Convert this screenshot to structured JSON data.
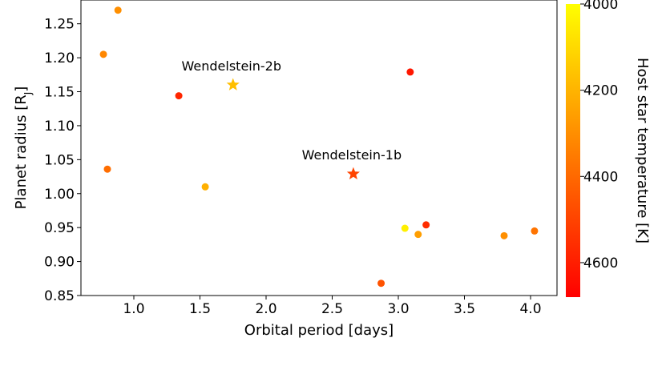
{
  "chart_data": {
    "type": "scatter",
    "title": "",
    "xlabel": "Orbital period [days]",
    "ylabel": "Planet radius [R",
    "ylabel_sub": "J",
    "ylabel_end": "]",
    "colorbar_label": "Host star temperature [K]",
    "xlim": [
      0.6,
      4.2
    ],
    "ylim": [
      0.85,
      1.285
    ],
    "clim": [
      4000,
      4680
    ],
    "x_ticks": [
      1.0,
      1.5,
      2.0,
      2.5,
      3.0,
      3.5,
      4.0
    ],
    "x_tick_labels": [
      "1.0",
      "1.5",
      "2.0",
      "2.5",
      "3.0",
      "3.5",
      "4.0"
    ],
    "y_ticks": [
      0.85,
      0.9,
      0.95,
      1.0,
      1.05,
      1.1,
      1.15,
      1.2,
      1.25
    ],
    "y_tick_labels": [
      "0.85",
      "0.90",
      "0.95",
      "1.00",
      "1.05",
      "1.10",
      "1.15",
      "1.20",
      "1.25"
    ],
    "c_ticks": [
      4000,
      4200,
      4400,
      4600
    ],
    "c_tick_labels": [
      "4000",
      "4200",
      "4400",
      "4600"
    ],
    "colormap": [
      "#ffff00",
      "#ff0000"
    ],
    "grid": false,
    "points": [
      {
        "x": 0.88,
        "y": 1.27,
        "temp": 4300,
        "marker": "circle"
      },
      {
        "x": 0.77,
        "y": 1.205,
        "temp": 4320,
        "marker": "circle"
      },
      {
        "x": 0.8,
        "y": 1.036,
        "temp": 4390,
        "marker": "circle"
      },
      {
        "x": 1.34,
        "y": 1.144,
        "temp": 4580,
        "marker": "circle"
      },
      {
        "x": 1.54,
        "y": 1.01,
        "temp": 4210,
        "marker": "circle"
      },
      {
        "x": 3.09,
        "y": 1.179,
        "temp": 4620,
        "marker": "circle"
      },
      {
        "x": 3.05,
        "y": 0.949,
        "temp": 4040,
        "marker": "circle"
      },
      {
        "x": 3.15,
        "y": 0.94,
        "temp": 4260,
        "marker": "circle"
      },
      {
        "x": 3.21,
        "y": 0.954,
        "temp": 4560,
        "marker": "circle"
      },
      {
        "x": 2.87,
        "y": 0.868,
        "temp": 4460,
        "marker": "circle"
      },
      {
        "x": 3.8,
        "y": 0.938,
        "temp": 4300,
        "marker": "circle"
      },
      {
        "x": 4.03,
        "y": 0.945,
        "temp": 4370,
        "marker": "circle"
      },
      {
        "x": 1.75,
        "y": 1.16,
        "temp": 4170,
        "marker": "star",
        "label": "Wendelstein-2b"
      },
      {
        "x": 2.66,
        "y": 1.029,
        "temp": 4500,
        "marker": "star",
        "label": "Wendelstein-1b"
      }
    ]
  }
}
